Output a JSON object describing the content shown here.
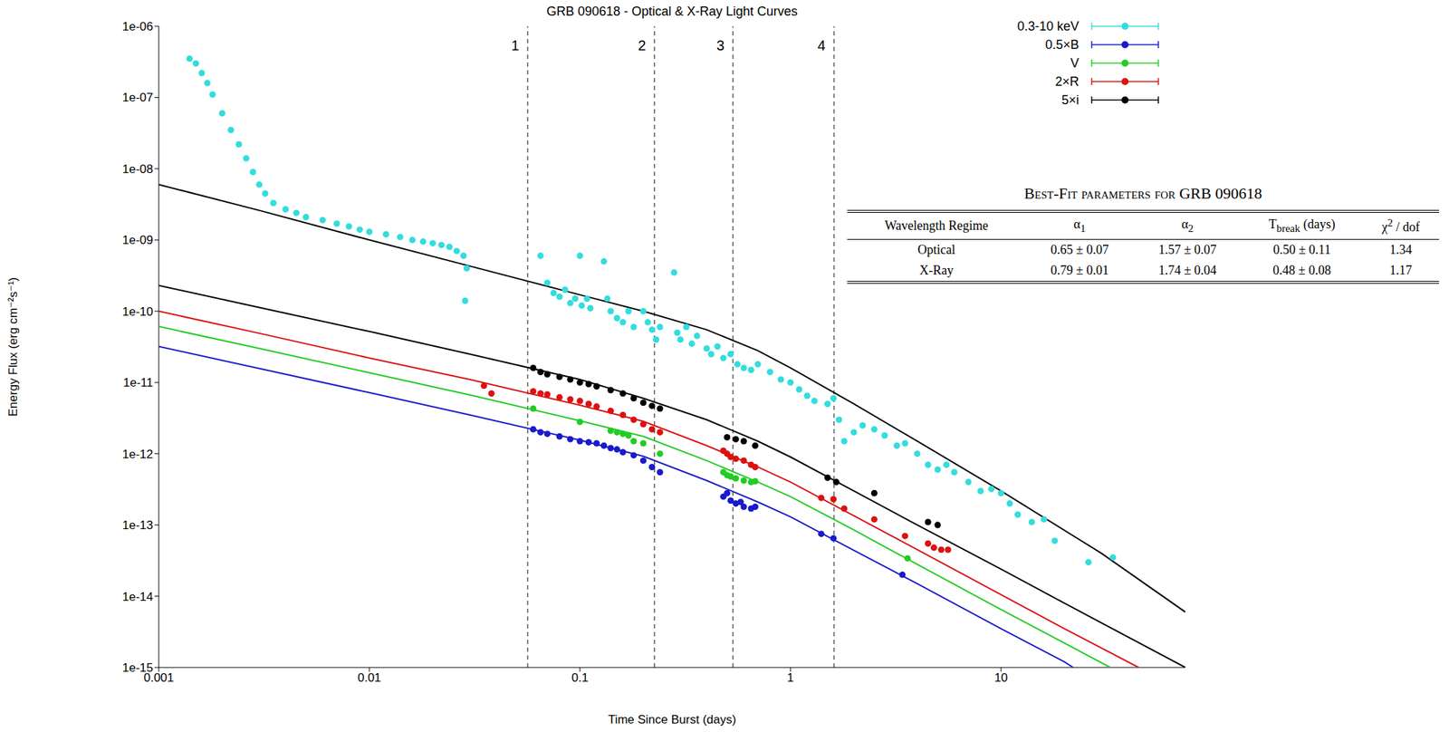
{
  "chart_data": {
    "type": "scatter",
    "title": "GRB 090618 - Optical & X-Ray Light Curves",
    "x_label": "Time Since Burst (days)",
    "y_label": "Energy Flux (erg cm⁻²s⁻¹)",
    "log": true,
    "grid": false,
    "legend": "upper right",
    "xlim": [
      0.001,
      75
    ],
    "xticks": [
      0.001,
      0.01,
      0.1,
      1,
      10
    ],
    "ylim": [
      1e-15,
      1e-06
    ],
    "yticks": [
      {
        "value": 1e-15,
        "label": "1e-15"
      },
      {
        "value": 1e-14,
        "label": "1e-14"
      },
      {
        "value": 1e-13,
        "label": "1e-13"
      },
      {
        "value": 1e-12,
        "label": "1e-12"
      },
      {
        "value": 1e-11,
        "label": "1e-11"
      },
      {
        "value": 1e-10,
        "label": "1e-10"
      },
      {
        "value": 1e-09,
        "label": "1e-09"
      },
      {
        "value": 1e-08,
        "label": "1e-08"
      },
      {
        "value": 1e-07,
        "label": "1e-07"
      },
      {
        "value": 1e-06,
        "label": "1e-06"
      }
    ],
    "annotations": [
      {
        "x": 0.0565,
        "text": "1"
      },
      {
        "x": 0.226,
        "text": "2"
      },
      {
        "x": 0.533,
        "text": "3"
      },
      {
        "x": 1.61,
        "text": "4"
      }
    ],
    "series": [
      {
        "type": "line",
        "color": "#000000",
        "line_style": "solid",
        "x": [
          0.001,
          0.003,
          0.01,
          0.03,
          0.1,
          0.2,
          0.4,
          0.7,
          1,
          2,
          4,
          10,
          30,
          75
        ],
        "values": [
          6e-09,
          2.6e-09,
          1e-09,
          4.3e-10,
          1.7e-10,
          1e-10,
          5.5e-11,
          2.8e-11,
          1.6e-11,
          5e-12,
          1.5e-12,
          3e-13,
          4e-14,
          6e-15
        ]
      },
      {
        "type": "line",
        "color": "#000000",
        "line_style": "solid",
        "x": [
          0.001,
          0.003,
          0.01,
          0.03,
          0.1,
          0.2,
          0.4,
          0.7,
          1,
          2,
          4,
          10,
          20,
          75
        ],
        "values": [
          2.3e-10,
          1.13e-10,
          5.2e-11,
          2.5e-11,
          1.1e-11,
          6e-12,
          3e-12,
          1.5e-12,
          9e-13,
          3e-13,
          1e-13,
          2.4e-14,
          8e-15,
          1e-15
        ]
      },
      {
        "type": "line",
        "color": "#dd1111",
        "line_style": "solid",
        "x": [
          0.001,
          0.003,
          0.01,
          0.03,
          0.1,
          0.2,
          0.4,
          0.7,
          1,
          2,
          4,
          10,
          20,
          45
        ],
        "values": [
          1e-10,
          4.9e-11,
          2.2e-11,
          1.1e-11,
          4.8e-12,
          2.85e-12,
          1.3e-12,
          6.5e-13,
          4e-13,
          1.35e-13,
          4.5e-14,
          1.05e-14,
          3.5e-15,
          1e-15
        ]
      },
      {
        "type": "line",
        "color": "#22cc22",
        "line_style": "solid",
        "x": [
          0.001,
          0.003,
          0.01,
          0.03,
          0.1,
          0.2,
          0.4,
          0.7,
          1,
          2,
          4,
          10,
          20,
          33
        ],
        "values": [
          6.1e-11,
          3e-11,
          1.37e-11,
          6.7e-12,
          2.9e-12,
          1.75e-12,
          8e-13,
          4e-13,
          2.5e-13,
          8.5e-14,
          2.8e-14,
          6.5e-15,
          2.2e-15,
          1e-15
        ]
      },
      {
        "type": "line",
        "color": "#1a1acc",
        "line_style": "solid",
        "x": [
          0.001,
          0.003,
          0.01,
          0.03,
          0.1,
          0.2,
          0.4,
          0.7,
          1,
          2,
          4,
          10,
          20,
          22
        ],
        "values": [
          3.2e-11,
          1.57e-11,
          7.2e-12,
          3.5e-12,
          1.55e-12,
          9.2e-13,
          4.2e-13,
          2.1e-13,
          1.3e-13,
          4.4e-14,
          1.5e-14,
          3.5e-15,
          1.2e-15,
          1e-15
        ]
      },
      {
        "name": "0.3-10 keV",
        "type": "scatter",
        "marker": "circle",
        "color": "#33dddd",
        "x": [
          0.0014,
          0.0015,
          0.0016,
          0.0017,
          0.0018,
          0.002,
          0.0022,
          0.0024,
          0.0026,
          0.0028,
          0.003,
          0.0032,
          0.0035,
          0.004,
          0.0045,
          0.005,
          0.006,
          0.007,
          0.008,
          0.009,
          0.01,
          0.012,
          0.014,
          0.016,
          0.018,
          0.02,
          0.022,
          0.024,
          0.026,
          0.028,
          0.029,
          0.0285,
          0.065,
          0.07,
          0.075,
          0.08,
          0.085,
          0.09,
          0.095,
          0.1,
          0.102,
          0.108,
          0.112,
          0.13,
          0.135,
          0.14,
          0.15,
          0.16,
          0.17,
          0.18,
          0.2,
          0.21,
          0.22,
          0.23,
          0.24,
          0.28,
          0.29,
          0.3,
          0.32,
          0.34,
          0.36,
          0.4,
          0.42,
          0.45,
          0.48,
          0.52,
          0.56,
          0.6,
          0.65,
          0.7,
          0.8,
          0.9,
          1,
          1.1,
          1.2,
          1.3,
          1.5,
          1.6,
          1.7,
          1.8,
          2,
          2.2,
          2.5,
          2.8,
          3.2,
          3.5,
          4,
          4.5,
          5,
          5.5,
          6,
          7,
          8,
          9,
          10,
          11,
          12,
          14,
          16,
          18,
          26,
          34
        ],
        "values": [
          3.5e-07,
          3e-07,
          2.2e-07,
          1.6e-07,
          1.1e-07,
          6e-08,
          3.5e-08,
          2.2e-08,
          1.4e-08,
          9e-09,
          6e-09,
          4.5e-09,
          3.3e-09,
          2.7e-09,
          2.4e-09,
          2.1e-09,
          1.9e-09,
          1.7e-09,
          1.55e-09,
          1.4e-09,
          1.3e-09,
          1.2e-09,
          1.1e-09,
          1e-09,
          9.5e-10,
          9e-10,
          8.5e-10,
          8e-10,
          7e-10,
          6e-10,
          4e-10,
          1.4e-10,
          6e-10,
          2.5e-10,
          1.8e-10,
          1.6e-10,
          2e-10,
          1.3e-10,
          1.5e-10,
          6e-10,
          1.2e-10,
          1.5e-10,
          1.1e-10,
          5e-10,
          1.5e-10,
          1e-10,
          8e-11,
          7e-11,
          1e-10,
          6e-11,
          1e-10,
          7e-11,
          5.5e-11,
          4e-11,
          6e-11,
          3.5e-10,
          5e-11,
          4e-11,
          6e-11,
          3.5e-11,
          4.5e-11,
          3e-11,
          2.5e-11,
          3.2e-11,
          2.2e-11,
          2.5e-11,
          1.8e-11,
          1.6e-11,
          1.5e-11,
          1.8e-11,
          1.4e-11,
          1.1e-11,
          1e-11,
          8e-12,
          6.5e-12,
          5.5e-12,
          5e-12,
          6e-12,
          3e-12,
          1.5e-12,
          2e-12,
          2.5e-12,
          2.2e-12,
          1.8e-12,
          1.3e-12,
          1.4e-12,
          1e-12,
          7e-13,
          6e-13,
          7e-13,
          5.5e-13,
          4e-13,
          3e-13,
          3.2e-13,
          2.8e-13,
          2e-13,
          1.4e-13,
          1.1e-13,
          1.2e-13,
          6e-14,
          3e-14,
          3.5e-14
        ]
      },
      {
        "name": "0.5×B",
        "type": "scatter",
        "marker": "circle",
        "color": "#1a1acc",
        "x": [
          0.06,
          0.065,
          0.07,
          0.08,
          0.09,
          0.1,
          0.11,
          0.12,
          0.13,
          0.14,
          0.15,
          0.16,
          0.18,
          0.2,
          0.22,
          0.24,
          0.48,
          0.5,
          0.52,
          0.55,
          0.58,
          0.6,
          0.65,
          0.68,
          1.4,
          1.6,
          3.4
        ],
        "values": [
          2.2e-12,
          2e-12,
          1.9e-12,
          1.75e-12,
          1.6e-12,
          1.5e-12,
          1.45e-12,
          1.4e-12,
          1.3e-12,
          1.2e-12,
          1.15e-12,
          1.05e-12,
          9.5e-13,
          8e-13,
          6.5e-13,
          5.5e-13,
          2.5e-13,
          2.8e-13,
          2.2e-13,
          2e-13,
          2.1e-13,
          1.8e-13,
          1.7e-13,
          1.8e-13,
          7.5e-14,
          6.5e-14,
          2e-14
        ]
      },
      {
        "name": "V",
        "type": "scatter",
        "marker": "circle",
        "color": "#22cc22",
        "x": [
          0.06,
          0.1,
          0.14,
          0.15,
          0.16,
          0.17,
          0.18,
          0.2,
          0.24,
          0.48,
          0.5,
          0.52,
          0.55,
          0.6,
          0.65,
          0.68,
          3.6
        ],
        "values": [
          4.3e-12,
          2.8e-12,
          2.1e-12,
          2e-12,
          1.9e-12,
          1.8e-12,
          1.5e-12,
          1.4e-12,
          1e-12,
          5.5e-13,
          5e-13,
          4.8e-13,
          4.5e-13,
          4.2e-13,
          4e-13,
          4.1e-13,
          3.4e-14
        ]
      },
      {
        "name": "2×R",
        "type": "scatter",
        "marker": "circle",
        "color": "#dd1111",
        "x": [
          0.035,
          0.038,
          0.06,
          0.065,
          0.07,
          0.08,
          0.09,
          0.1,
          0.11,
          0.12,
          0.14,
          0.16,
          0.18,
          0.2,
          0.22,
          0.24,
          0.48,
          0.5,
          0.52,
          0.55,
          0.6,
          0.65,
          0.68,
          1.4,
          1.6,
          1.8,
          2.5,
          3.5,
          4.5,
          4.8,
          5.2,
          5.6
        ],
        "values": [
          9e-12,
          7e-12,
          7.5e-12,
          7e-12,
          6.8e-12,
          6.2e-12,
          5.8e-12,
          5.5e-12,
          5e-12,
          4.6e-12,
          4e-12,
          3.5e-12,
          3e-12,
          2.6e-12,
          2.2e-12,
          2e-12,
          1.1e-12,
          1e-12,
          9e-13,
          8.5e-13,
          8e-13,
          7e-13,
          6.5e-13,
          2.4e-13,
          2.3e-13,
          1.7e-13,
          1.2e-13,
          7e-14,
          5.5e-14,
          4.8e-14,
          4.5e-14,
          4.5e-14
        ]
      },
      {
        "name": "5×i",
        "type": "scatter",
        "marker": "circle",
        "color": "#000000",
        "x": [
          0.06,
          0.065,
          0.07,
          0.08,
          0.09,
          0.1,
          0.11,
          0.12,
          0.14,
          0.16,
          0.18,
          0.2,
          0.22,
          0.24,
          0.5,
          0.55,
          0.6,
          0.68,
          1.5,
          1.65,
          2.5,
          4.5,
          5
        ],
        "values": [
          1.6e-11,
          1.4e-11,
          1.3e-11,
          1.2e-11,
          1.1e-11,
          1e-11,
          9.5e-12,
          8.8e-12,
          7.8e-12,
          7e-12,
          6e-12,
          5.2e-12,
          4.7e-12,
          4.3e-12,
          1.7e-12,
          1.6e-12,
          1.5e-12,
          1.3e-12,
          4.6e-13,
          4e-13,
          2.8e-13,
          1.1e-13,
          1e-13
        ]
      }
    ]
  },
  "table": {
    "title": "Best-Fit parameters for GRB 090618",
    "columns": [
      {
        "text": "Wavelength Regime"
      },
      {
        "text": "α",
        "sub": "1"
      },
      {
        "text": "α",
        "sub": "2"
      },
      {
        "text": "T",
        "sub": "break",
        "suffix": " (days)"
      },
      {
        "text": "χ",
        "sup": "2",
        "suffix": " / dof"
      }
    ],
    "rows": [
      [
        "Optical",
        "0.65 ± 0.07",
        "1.57 ± 0.07",
        "0.50 ± 0.11",
        "1.34"
      ],
      [
        "X-Ray",
        "0.79 ± 0.01",
        "1.74 ± 0.04",
        "0.48 ± 0.08",
        "1.17"
      ]
    ]
  }
}
